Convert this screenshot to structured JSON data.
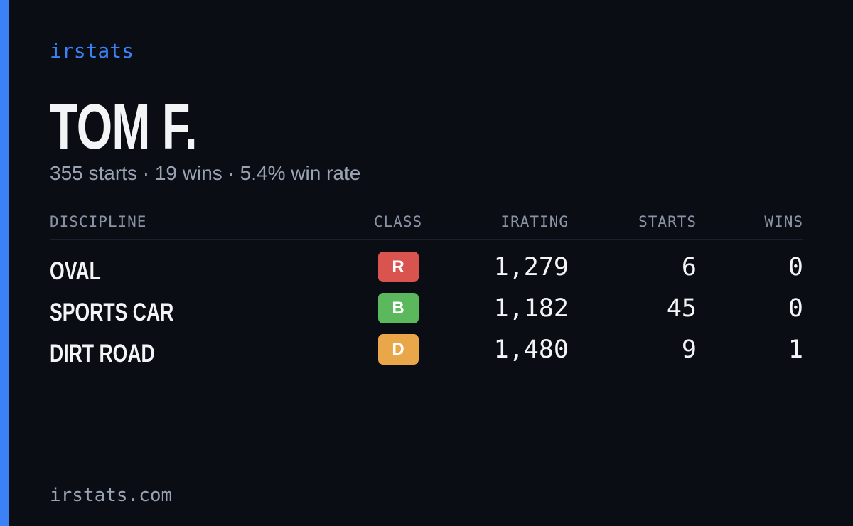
{
  "brand": "irstats",
  "profile": {
    "name": "TOM F.",
    "summary": "355 starts · 19 wins · 5.4% win rate"
  },
  "table": {
    "headers": [
      "DISCIPLINE",
      "CLASS",
      "IRATING",
      "STARTS",
      "WINS"
    ],
    "rows": [
      {
        "discipline": "OVAL",
        "class": "R",
        "class_color": "#d9534f",
        "irating": "1,279",
        "starts": "6",
        "wins": "0"
      },
      {
        "discipline": "SPORTS CAR",
        "class": "B",
        "class_color": "#5cb85c",
        "irating": "1,182",
        "starts": "45",
        "wins": "0"
      },
      {
        "discipline": "DIRT ROAD",
        "class": "D",
        "class_color": "#eaa74a",
        "irating": "1,480",
        "starts": "9",
        "wins": "1"
      }
    ]
  },
  "footer": "irstats.com"
}
